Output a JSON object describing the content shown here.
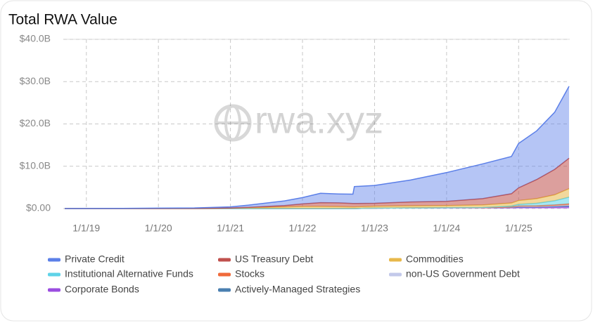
{
  "chart_data": {
    "type": "stacked-area",
    "title": "Total RWA Value",
    "watermark": "rwa.xyz",
    "x": [
      2018.7,
      2019,
      2019.5,
      2020,
      2020.5,
      2021,
      2021.25,
      2021.5,
      2021.75,
      2022,
      2022.25,
      2022.5,
      2022.7,
      2022.72,
      2023,
      2023.5,
      2024,
      2024.5,
      2024.9,
      2025,
      2025.25,
      2025.5,
      2025.7
    ],
    "xlim": [
      2018.68,
      2025.71
    ],
    "xticks": [
      {
        "value": 2019,
        "label": "1/1/19"
      },
      {
        "value": 2020,
        "label": "1/1/20"
      },
      {
        "value": 2021,
        "label": "1/1/21"
      },
      {
        "value": 2022,
        "label": "1/1/22"
      },
      {
        "value": 2023,
        "label": "1/1/23"
      },
      {
        "value": 2024,
        "label": "1/1/24"
      },
      {
        "value": 2025,
        "label": "1/1/25"
      }
    ],
    "ylim": [
      0,
      40
    ],
    "yticks": [
      {
        "value": 0,
        "label": "$0.00"
      },
      {
        "value": 10,
        "label": "$10.0B"
      },
      {
        "value": 20,
        "label": "$20.0B"
      },
      {
        "value": 30,
        "label": "$30.0B"
      },
      {
        "value": 40,
        "label": "$40.0B"
      }
    ],
    "grid": true,
    "series": [
      {
        "name": "Corporate Bonds",
        "color": "#9b4de0",
        "values": [
          0,
          0,
          0,
          0,
          0,
          0,
          0,
          0,
          0,
          0,
          0,
          0,
          0,
          0,
          0.1,
          0.15,
          0.2,
          0.2,
          0.25,
          0.3,
          0.3,
          0.35,
          0.4
        ]
      },
      {
        "name": "Actively-Managed Strategies",
        "color": "#4a7fb0",
        "values": [
          0,
          0,
          0,
          0,
          0,
          0,
          0,
          0,
          0,
          0,
          0,
          0,
          0,
          0,
          0,
          0,
          0,
          0,
          0.05,
          0.1,
          0.1,
          0.15,
          0.2
        ]
      },
      {
        "name": "non-US Government Debt",
        "color": "#c3c9ea",
        "values": [
          0,
          0,
          0,
          0,
          0,
          0,
          0,
          0,
          0,
          0,
          0,
          0,
          0,
          0,
          0,
          0,
          0,
          0,
          0.05,
          0.1,
          0.1,
          0.15,
          0.2
        ]
      },
      {
        "name": "Stocks",
        "color": "#f06a3a",
        "values": [
          0,
          0,
          0,
          0,
          0,
          0,
          0,
          0,
          0,
          0,
          0,
          0,
          0,
          0,
          0,
          0,
          0,
          0,
          0.05,
          0.1,
          0.15,
          0.2,
          0.3
        ]
      },
      {
        "name": "Institutional Alternative Funds",
        "color": "#5fd3e8",
        "values": [
          0,
          0,
          0,
          0,
          0,
          0,
          0,
          0,
          0,
          0,
          0,
          0,
          0,
          0,
          0,
          0,
          0,
          0.05,
          0.2,
          0.4,
          0.6,
          1.0,
          1.6
        ]
      },
      {
        "name": "Commodities",
        "color": "#e8b84a",
        "values": [
          0,
          0,
          0.01,
          0.02,
          0.03,
          0.1,
          0.2,
          0.3,
          0.4,
          0.5,
          0.5,
          0.45,
          0.4,
          0.4,
          0.45,
          0.5,
          0.5,
          0.6,
          0.7,
          0.9,
          1.1,
          1.4,
          2.0
        ]
      },
      {
        "name": "US Treasury Debt",
        "color": "#c0504d",
        "values": [
          0,
          0,
          0,
          0.01,
          0.02,
          0.05,
          0.1,
          0.2,
          0.3,
          0.6,
          0.9,
          0.9,
          0.8,
          0.8,
          0.7,
          0.9,
          1.0,
          1.5,
          2.2,
          3.0,
          4.5,
          6.0,
          7.2
        ]
      },
      {
        "name": "Private Credit",
        "color": "#5b7fe8",
        "values": [
          0,
          0.02,
          0.04,
          0.07,
          0.1,
          0.25,
          0.5,
          0.8,
          1.1,
          1.5,
          2.2,
          2.1,
          2.2,
          4.0,
          4.2,
          5.2,
          6.8,
          8.2,
          8.8,
          10.5,
          11.5,
          13.5,
          17.0
        ]
      }
    ],
    "legend_order": [
      7,
      6,
      5,
      4,
      3,
      2,
      0,
      1
    ]
  }
}
